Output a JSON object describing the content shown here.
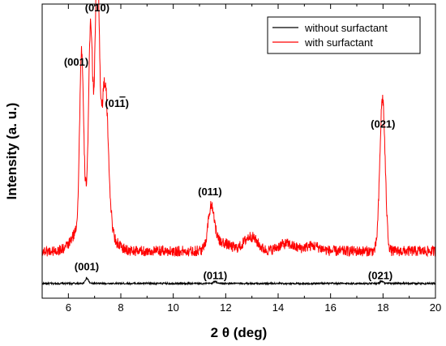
{
  "chart_data": {
    "type": "line",
    "title": "",
    "xlabel": "2 θ (deg)",
    "ylabel": "Intensity (a. u.)",
    "xlim": [
      5,
      20
    ],
    "ylim": [
      0,
      1
    ],
    "x_ticks": [
      6,
      8,
      10,
      12,
      14,
      16,
      18,
      20
    ],
    "y_ticks_labeled": false,
    "grid": false,
    "legend_position": "top-right",
    "series": [
      {
        "name": "without surfactant",
        "color": "#000000",
        "baseline": 0.05,
        "noise": 0.003,
        "peaks": [
          {
            "x": 6.7,
            "height": 0.018,
            "width": 0.06
          },
          {
            "x": 11.6,
            "height": 0.006,
            "width": 0.08
          },
          {
            "x": 17.95,
            "height": 0.008,
            "width": 0.06
          }
        ]
      },
      {
        "name": "with surfactant",
        "color": "#ff0000",
        "baseline": 0.16,
        "noise": 0.018,
        "peaks": [
          {
            "x": 6.5,
            "height": 0.55,
            "width": 0.07
          },
          {
            "x": 6.85,
            "height": 0.56,
            "width": 0.07
          },
          {
            "x": 7.1,
            "height": 0.78,
            "width": 0.08
          },
          {
            "x": 7.4,
            "height": 0.44,
            "width": 0.12
          },
          {
            "x": 6.95,
            "height": 0.22,
            "width": 0.45
          },
          {
            "x": 11.45,
            "height": 0.14,
            "width": 0.12
          },
          {
            "x": 11.8,
            "height": 0.03,
            "width": 0.35
          },
          {
            "x": 12.95,
            "height": 0.05,
            "width": 0.25
          },
          {
            "x": 14.3,
            "height": 0.025,
            "width": 0.3
          },
          {
            "x": 15.3,
            "height": 0.018,
            "width": 0.3
          },
          {
            "x": 17.98,
            "height": 0.52,
            "width": 0.1
          }
        ]
      }
    ],
    "annotations": [
      {
        "text": "(010)",
        "x": 7.1,
        "y": 0.975
      },
      {
        "text": "(001)",
        "x": 6.3,
        "y": 0.79
      },
      {
        "text": "(011)",
        "x": 7.85,
        "y": 0.65,
        "overline_last_digit": true
      },
      {
        "text": "(021)",
        "x": 18.0,
        "y": 0.58
      },
      {
        "text": "(011)",
        "x": 11.4,
        "y": 0.35
      },
      {
        "text": "(001)",
        "x": 6.7,
        "y": 0.095
      },
      {
        "text": "(011)",
        "x": 11.6,
        "y": 0.065
      },
      {
        "text": "(021)",
        "x": 17.9,
        "y": 0.065
      }
    ]
  }
}
